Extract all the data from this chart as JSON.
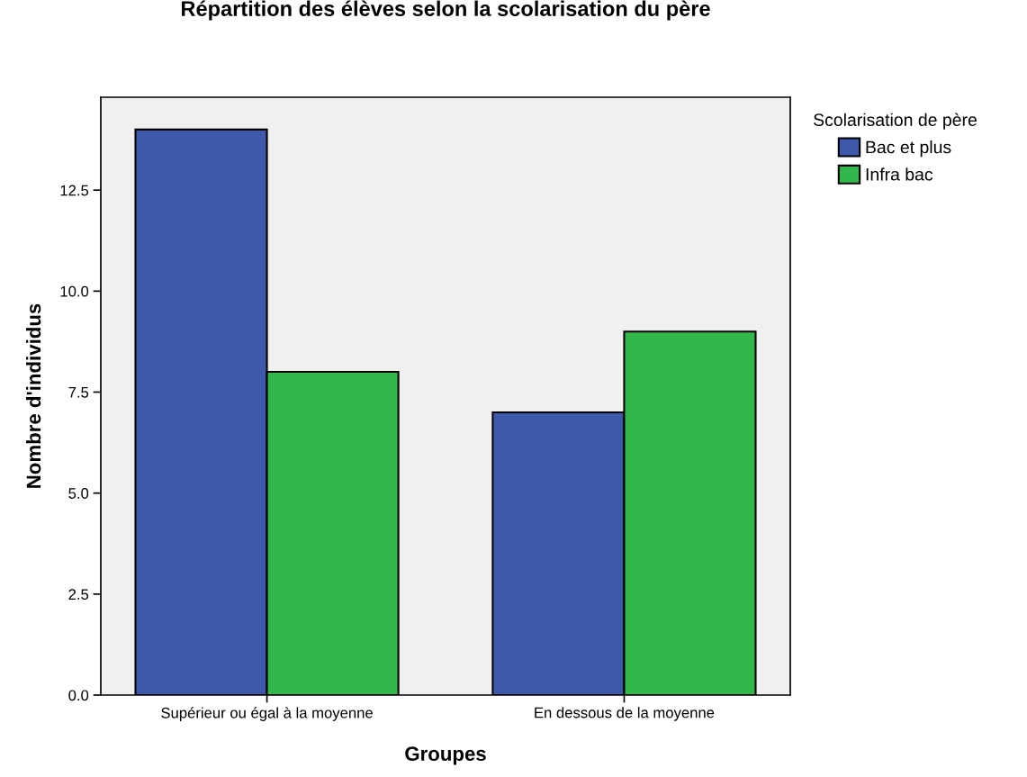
{
  "chart_data": {
    "type": "bar",
    "title": "Répartition des élèves selon la scolarisation du père",
    "xlabel": "Groupes",
    "ylabel": "Nombre d'individus",
    "legend_title": "Scolarisation de père",
    "categories": [
      "Supérieur ou égal à la moyenne",
      "En dessous de la moyenne"
    ],
    "series": [
      {
        "name": "Bac et plus",
        "color": "#3e58ac",
        "values": [
          14,
          7
        ]
      },
      {
        "name": "Infra bac",
        "color": "#30b84a",
        "values": [
          8,
          9
        ]
      }
    ],
    "ylim": [
      0,
      14.8
    ],
    "yticks": [
      {
        "value": 0,
        "label": "0.0"
      },
      2.5,
      {
        "value": 5,
        "label": "5.0"
      },
      7.5,
      {
        "value": 10,
        "label": "10.0"
      },
      12.5
    ],
    "grid": false,
    "legend": "top right"
  }
}
